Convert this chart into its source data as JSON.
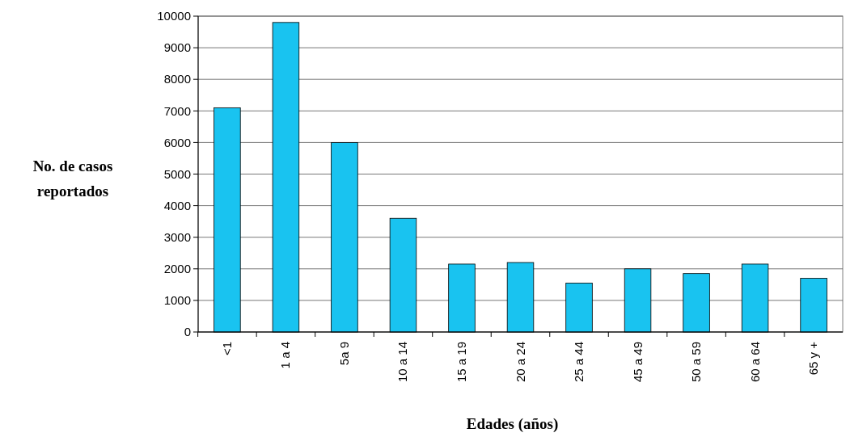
{
  "chart_data": {
    "type": "bar",
    "xlabel": "Edades (años)",
    "ylabel": "No. de casos reportados",
    "categories": [
      "<1",
      "1 a 4",
      "5a 9",
      "10 a 14",
      "15 a 19",
      "20 a 24",
      "25 a 44",
      "45 a 49",
      "50 a 59",
      "60 a 64",
      "65 y +"
    ],
    "values": [
      7100,
      9800,
      6000,
      3600,
      2150,
      2200,
      1550,
      2000,
      1850,
      2150,
      1700
    ],
    "color": "#19c3f0",
    "ylim": [
      0,
      10000
    ],
    "yticks": [
      0,
      1000,
      2000,
      3000,
      4000,
      5000,
      6000,
      7000,
      8000,
      9000,
      10000
    ],
    "grid": "y"
  }
}
